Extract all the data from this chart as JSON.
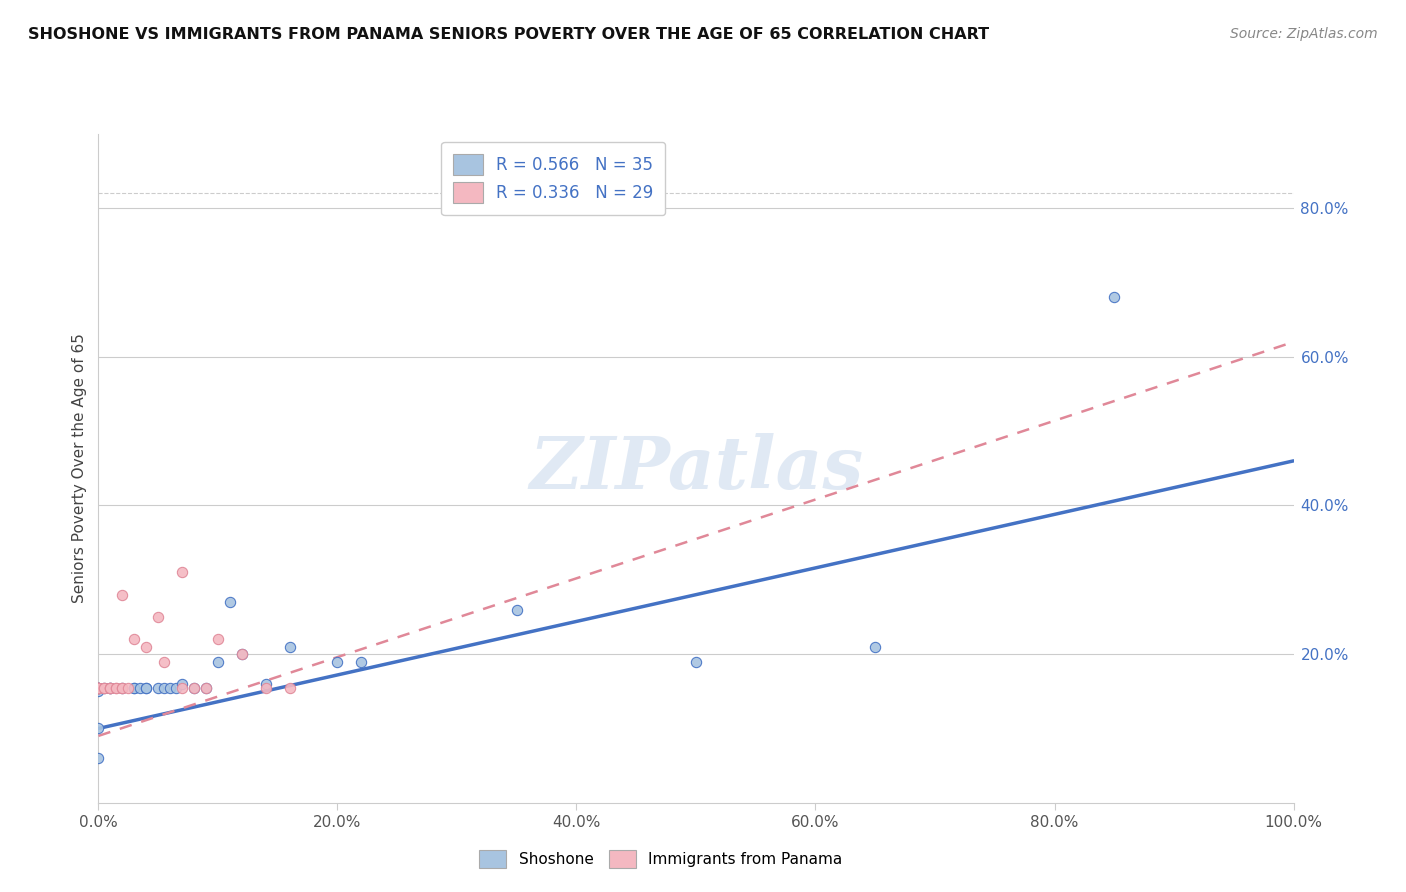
{
  "title": "SHOSHONE VS IMMIGRANTS FROM PANAMA SENIORS POVERTY OVER THE AGE OF 65 CORRELATION CHART",
  "source": "Source: ZipAtlas.com",
  "ylabel": "Seniors Poverty Over the Age of 65",
  "xlim": [
    0.0,
    1.0
  ],
  "ylim": [
    0.0,
    0.9
  ],
  "xticks": [
    0.0,
    0.2,
    0.4,
    0.6,
    0.8,
    1.0
  ],
  "xticklabels": [
    "0.0%",
    "20.0%",
    "40.0%",
    "60.0%",
    "80.0%",
    "100.0%"
  ],
  "yticks_right": [
    0.2,
    0.4,
    0.6,
    0.8
  ],
  "yticklabels_right": [
    "20.0%",
    "40.0%",
    "60.0%",
    "80.0%"
  ],
  "legend_r1": "R = 0.566",
  "legend_n1": "N = 35",
  "legend_r2": "R = 0.336",
  "legend_n2": "N = 29",
  "color_shoshone": "#a8c4e0",
  "color_panama": "#f4b8c1",
  "color_line_shoshone": "#4472c4",
  "color_line_panama": "#e08898",
  "watermark_text": "ZIPatlas",
  "shoshone_x": [
    0.0,
    0.0,
    0.0,
    0.0,
    0.0,
    0.0,
    0.0,
    0.005,
    0.01,
    0.01,
    0.02,
    0.03,
    0.03,
    0.035,
    0.04,
    0.04,
    0.05,
    0.055,
    0.06,
    0.065,
    0.07,
    0.08,
    0.09,
    0.1,
    0.11,
    0.12,
    0.14,
    0.16,
    0.2,
    0.22,
    0.35,
    0.5,
    0.65,
    0.85,
    0.0
  ],
  "shoshone_y": [
    0.155,
    0.155,
    0.155,
    0.15,
    0.155,
    0.155,
    0.1,
    0.155,
    0.155,
    0.155,
    0.155,
    0.155,
    0.155,
    0.155,
    0.155,
    0.155,
    0.155,
    0.155,
    0.155,
    0.155,
    0.16,
    0.155,
    0.155,
    0.19,
    0.27,
    0.2,
    0.16,
    0.21,
    0.19,
    0.19,
    0.26,
    0.19,
    0.21,
    0.68,
    0.06
  ],
  "panama_x": [
    0.0,
    0.0,
    0.0,
    0.0,
    0.0,
    0.0,
    0.005,
    0.005,
    0.01,
    0.01,
    0.01,
    0.015,
    0.015,
    0.02,
    0.02,
    0.02,
    0.025,
    0.03,
    0.04,
    0.05,
    0.055,
    0.07,
    0.07,
    0.08,
    0.09,
    0.1,
    0.12,
    0.14,
    0.16
  ],
  "panama_y": [
    0.155,
    0.155,
    0.155,
    0.155,
    0.155,
    0.155,
    0.155,
    0.155,
    0.155,
    0.155,
    0.155,
    0.155,
    0.155,
    0.155,
    0.155,
    0.28,
    0.155,
    0.22,
    0.21,
    0.25,
    0.19,
    0.155,
    0.31,
    0.155,
    0.155,
    0.22,
    0.2,
    0.155,
    0.155
  ],
  "shoshone_line_x": [
    0.0,
    1.0
  ],
  "shoshone_line_y": [
    0.1,
    0.46
  ],
  "panama_line_x": [
    0.0,
    1.0
  ],
  "panama_line_y": [
    0.09,
    0.62
  ],
  "grid_yticks": [
    0.2,
    0.4,
    0.6,
    0.8
  ],
  "hline_top_y": 0.82
}
